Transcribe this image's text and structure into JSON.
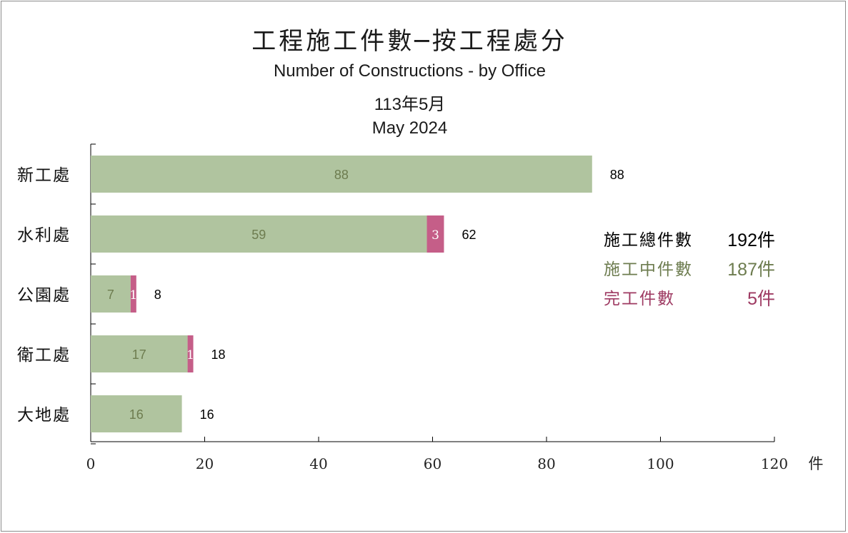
{
  "title": {
    "zh": "工程施工件數─按工程處分",
    "en": "Number of Constructions - by Office",
    "date_zh": "113年5月",
    "date_en": "May 2024"
  },
  "summary": {
    "total_label": "施工總件數",
    "total_value": "192件",
    "ongoing_label": "施工中件數",
    "ongoing_value": "187件",
    "done_label": "完工件數",
    "done_value": "5件"
  },
  "colors": {
    "ongoing": "#b0c49f",
    "completed": "#c55e88",
    "ongoing_text": "#6d7c4f",
    "completed_text": "#9e3a62"
  },
  "chart_data": {
    "type": "bar",
    "orientation": "horizontal",
    "stacked": true,
    "categories": [
      "新工處",
      "水利處",
      "公園處",
      "衛工處",
      "大地處"
    ],
    "series": [
      {
        "values": [
          88,
          59,
          7,
          17,
          16
        ]
      },
      {
        "values": [
          0,
          3,
          1,
          1,
          0
        ]
      }
    ],
    "totals": [
      88,
      62,
      8,
      18,
      16
    ],
    "xlim": [
      0,
      120
    ],
    "xticks": [
      0,
      20,
      40,
      60,
      80,
      100,
      120
    ],
    "xunit": "件",
    "grid": false
  }
}
